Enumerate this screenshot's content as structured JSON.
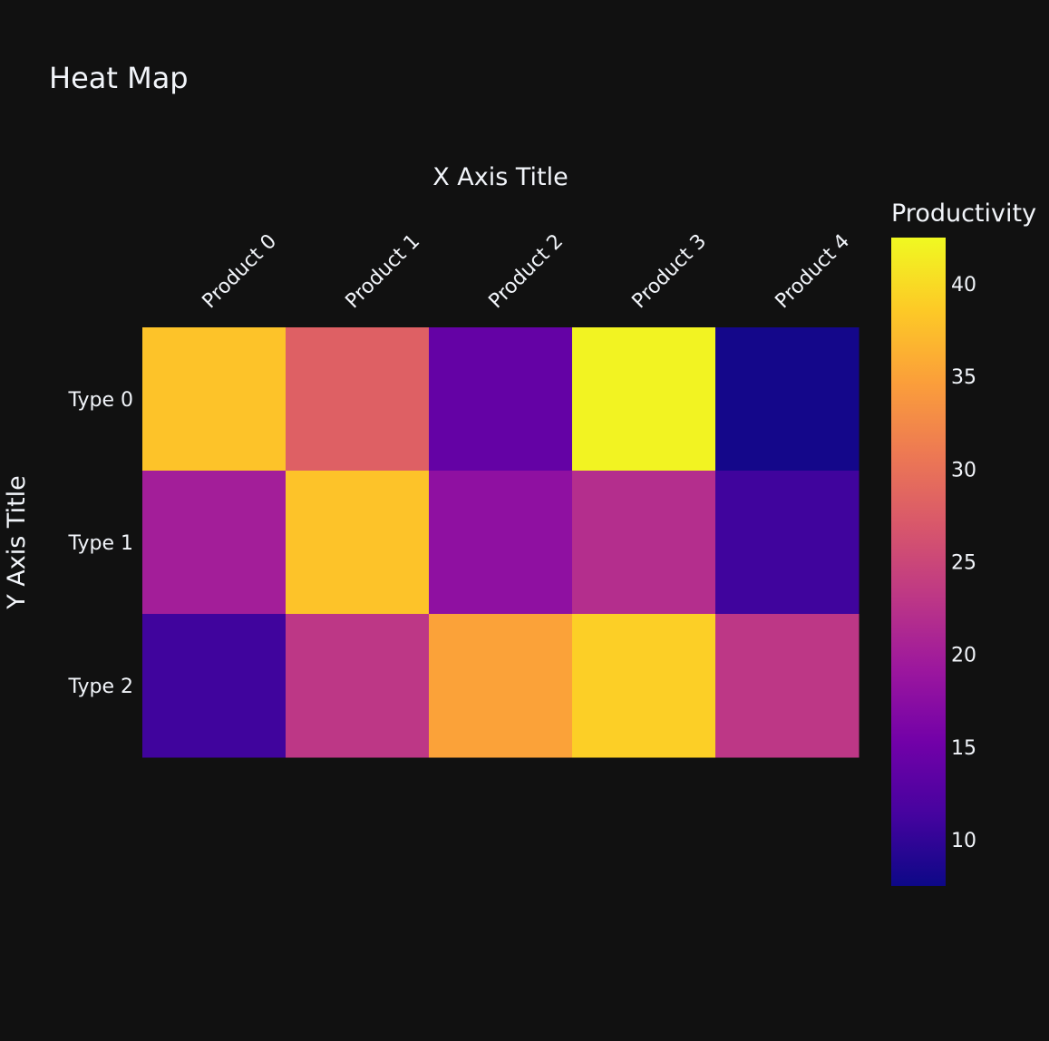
{
  "chart_data": {
    "type": "heatmap",
    "title": "Heat Map",
    "xlabel": "X Axis Title",
    "ylabel": "Y Axis Title",
    "x_categories": [
      "Product 0",
      "Product 1",
      "Product 2",
      "Product 3",
      "Product 4"
    ],
    "y_categories": [
      "Type 0",
      "Type 1",
      "Type 2"
    ],
    "z": [
      [
        38,
        28,
        14,
        42,
        8
      ],
      [
        20,
        38,
        18,
        22,
        11
      ],
      [
        11,
        23,
        35,
        39,
        23
      ]
    ],
    "colorbar": {
      "title": "Productivity",
      "range": [
        7.5,
        42.5
      ],
      "ticks": [
        10,
        15,
        20,
        25,
        30,
        35,
        40
      ],
      "colorscale": [
        "#0d0887",
        "#46039f",
        "#7201a8",
        "#9c179e",
        "#bd3786",
        "#d8576b",
        "#ed7953",
        "#fb9f3a",
        "#fdca26",
        "#f0f921"
      ]
    },
    "x_axis_side": "top",
    "x_tick_angle": -45,
    "grid": false,
    "background": "#111111",
    "text_color": "#f2f5fa"
  }
}
